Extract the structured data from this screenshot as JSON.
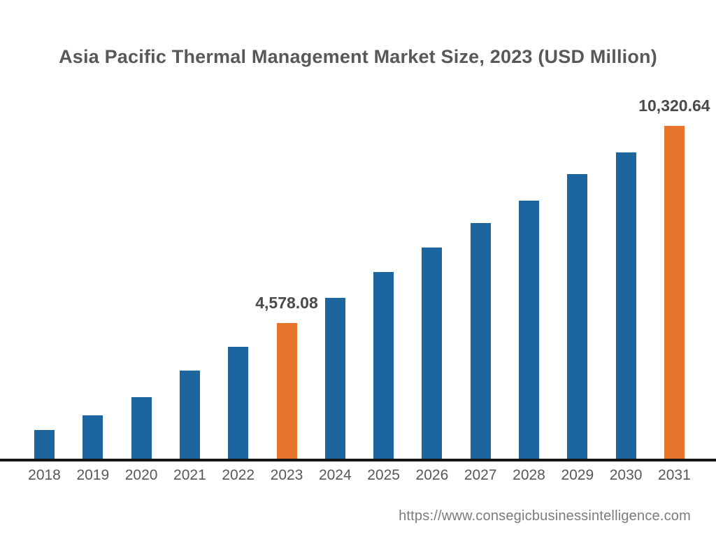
{
  "title": "Asia Pacific Thermal Management Market Size, 2023 (USD Million)",
  "footer": {
    "url": "https://www.consegicbusinessintelligence.com"
  },
  "colors": {
    "bar_default": "#1d659e",
    "bar_highlight": "#e8742b",
    "axis": "#161616",
    "title_text": "#58585a",
    "tick_text": "#58585a",
    "value_label_text": "#4a4a4a",
    "url_text": "#7b7b7b"
  },
  "chart_data": {
    "type": "bar",
    "title": "Asia Pacific Thermal Management Market Size, 2023 (USD Million)",
    "unit": "USD Million",
    "xlabel": "",
    "ylabel": "",
    "categories": [
      "2018",
      "2019",
      "2020",
      "2021",
      "2022",
      "2023",
      "2024",
      "2025",
      "2026",
      "2027",
      "2028",
      "2029",
      "2030",
      "2031"
    ],
    "values": [
      1460,
      1890,
      2420,
      3190,
      3890,
      4578.08,
      5310,
      6070,
      6780,
      7490,
      8140,
      8920,
      9550,
      10320.64
    ],
    "labeled_points": {
      "2023": "4,578.08",
      "2031": "10,320.64"
    },
    "highlighted_categories": [
      "2023",
      "2031"
    ],
    "ylim": [
      630,
      10320.64
    ],
    "grid": false,
    "legend": false,
    "note": "values for unlabeled years estimated from bar heights"
  }
}
